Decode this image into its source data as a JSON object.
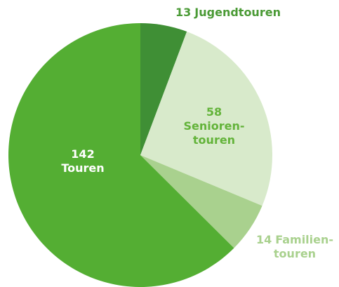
{
  "chart_data": {
    "type": "pie",
    "categories": [
      [
        "Jugendtouren"
      ],
      [
        "Senioren-",
        "touren"
      ],
      [
        "Familien-",
        "touren"
      ],
      [
        "Touren"
      ]
    ],
    "values": [
      13,
      58,
      14,
      142
    ],
    "colors": [
      "#3f8f35",
      "#d8eacb",
      "#a9d18e",
      "#54ae33"
    ],
    "label_colors": [
      "#4a9a35",
      "#63b33a",
      "#a9d18e",
      "#ffffff"
    ]
  }
}
